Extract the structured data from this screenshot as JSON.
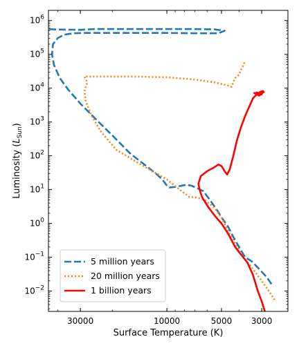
{
  "chart_data": {
    "type": "line",
    "xlabel": "Surface Temperature (K)",
    "ylabel": "Luminosity (L_Sun)",
    "ylabel_main": "Luminosity (",
    "ylabel_italic": "L",
    "ylabel_sub": "Sun",
    "ylabel_close": ")",
    "x_scale": "log",
    "x_inverted": true,
    "xlim": [
      45000,
      2150
    ],
    "y_scale": "log",
    "ylim": [
      0.0025,
      2000000
    ],
    "grid": false,
    "legend_position": "lower-left",
    "x_ticks": [
      {
        "value": 30000,
        "label": "30000"
      },
      {
        "value": 10000,
        "label": "10000"
      },
      {
        "value": 5000,
        "label": "5000"
      },
      {
        "value": 3000,
        "label": "3000"
      }
    ],
    "y_ticks": [
      {
        "value": 0.01,
        "base": "10",
        "exp": "−2"
      },
      {
        "value": 0.1,
        "base": "10",
        "exp": "−1"
      },
      {
        "value": 1,
        "base": "10",
        "exp": "0"
      },
      {
        "value": 10,
        "base": "10",
        "exp": "1"
      },
      {
        "value": 100,
        "base": "10",
        "exp": "2"
      },
      {
        "value": 1000,
        "base": "10",
        "exp": "3"
      },
      {
        "value": 10000,
        "base": "10",
        "exp": "4"
      },
      {
        "value": 100000,
        "base": "10",
        "exp": "5"
      },
      {
        "value": 1000000,
        "base": "10",
        "exp": "6"
      }
    ],
    "series": [
      {
        "name": "5 million years",
        "color": "#1f77b4",
        "style": "dashed",
        "points": [
          [
            2650,
            0.016
          ],
          [
            2800,
            0.025
          ],
          [
            3100,
            0.045
          ],
          [
            3400,
            0.075
          ],
          [
            3700,
            0.1
          ],
          [
            4000,
            0.2
          ],
          [
            4300,
            0.4
          ],
          [
            4600,
            0.8
          ],
          [
            4900,
            1.3
          ],
          [
            5300,
            2.5
          ],
          [
            5800,
            5
          ],
          [
            6300,
            9
          ],
          [
            6800,
            11
          ],
          [
            7300,
            13
          ],
          [
            7800,
            14
          ],
          [
            8300,
            13
          ],
          [
            9000,
            12
          ],
          [
            9700,
            11.5
          ],
          [
            9800,
            12
          ],
          [
            10100,
            14
          ],
          [
            10600,
            20
          ],
          [
            11500,
            30
          ],
          [
            13000,
            50
          ],
          [
            16000,
            120
          ],
          [
            20000,
            400
          ],
          [
            25000,
            1300
          ],
          [
            30000,
            3500
          ],
          [
            35000,
            9000
          ],
          [
            39000,
            20000
          ],
          [
            42000,
            50000
          ],
          [
            43000,
            100000
          ],
          [
            42500,
            200000
          ],
          [
            40000,
            300000
          ],
          [
            37000,
            380000
          ],
          [
            33000,
            420000
          ],
          [
            28000,
            430000
          ],
          [
            20000,
            430000
          ],
          [
            14000,
            430000
          ],
          [
            10000,
            430000
          ],
          [
            7000,
            420000
          ],
          [
            5200,
            420000
          ],
          [
            4800,
            500000
          ],
          [
            5500,
            550000
          ],
          [
            7000,
            560000
          ],
          [
            10000,
            560000
          ],
          [
            15000,
            560000
          ],
          [
            20000,
            560000
          ],
          [
            25000,
            560000
          ],
          [
            30000,
            530000
          ],
          [
            40000,
            540000
          ],
          [
            46000,
            560000
          ]
        ]
      },
      {
        "name": "20 million years",
        "color": "#ff7f0e",
        "style": "dotted",
        "points": [
          [
            2550,
            0.0055
          ],
          [
            2700,
            0.009
          ],
          [
            3000,
            0.02
          ],
          [
            3400,
            0.05
          ],
          [
            3800,
            0.1
          ],
          [
            4200,
            0.25
          ],
          [
            4600,
            0.6
          ],
          [
            5000,
            1.5
          ],
          [
            5500,
            3
          ],
          [
            6200,
            5
          ],
          [
            7000,
            6
          ],
          [
            7500,
            6
          ],
          [
            8500,
            10
          ],
          [
            10000,
            20
          ],
          [
            12000,
            35
          ],
          [
            15000,
            70
          ],
          [
            19000,
            150
          ],
          [
            23000,
            500
          ],
          [
            26000,
            1500
          ],
          [
            28000,
            4000
          ],
          [
            28500,
            8000
          ],
          [
            27500,
            15000
          ],
          [
            28500,
            22000
          ],
          [
            25000,
            22000
          ],
          [
            20000,
            22000
          ],
          [
            15000,
            22000
          ],
          [
            10000,
            21000
          ],
          [
            7000,
            18000
          ],
          [
            5500,
            15000
          ],
          [
            4600,
            12000
          ],
          [
            4400,
            11000
          ],
          [
            4200,
            20000
          ],
          [
            4000,
            25000
          ],
          [
            3900,
            35000
          ],
          [
            3800,
            45000
          ],
          [
            3700,
            65000
          ]
        ]
      },
      {
        "name": "1 billion years",
        "color": "#ff0000",
        "style": "solid",
        "points": [
          [
            2880,
            0.0025
          ],
          [
            3000,
            0.005
          ],
          [
            3150,
            0.01
          ],
          [
            3350,
            0.03
          ],
          [
            3600,
            0.07
          ],
          [
            3900,
            0.12
          ],
          [
            4200,
            0.2
          ],
          [
            4600,
            0.5
          ],
          [
            5000,
            1
          ],
          [
            5400,
            1.6
          ],
          [
            5900,
            3
          ],
          [
            6400,
            6
          ],
          [
            6600,
            10
          ],
          [
            6700,
            15
          ],
          [
            6500,
            25
          ],
          [
            6000,
            35
          ],
          [
            5500,
            45
          ],
          [
            5200,
            55
          ],
          [
            5000,
            50
          ],
          [
            4800,
            35
          ],
          [
            4650,
            28
          ],
          [
            4500,
            40
          ],
          [
            4300,
            100
          ],
          [
            4100,
            300
          ],
          [
            3900,
            700
          ],
          [
            3700,
            1500
          ],
          [
            3500,
            3000
          ],
          [
            3350,
            5000
          ],
          [
            3200,
            6500
          ],
          [
            3050,
            7800
          ],
          [
            2950,
            8200
          ],
          [
            3100,
            7000
          ],
          [
            3200,
            7500
          ],
          [
            3000,
            6500
          ],
          [
            3300,
            7200
          ],
          [
            3100,
            6000
          ],
          [
            2900,
            8000
          ]
        ]
      }
    ]
  },
  "legend": {
    "items": [
      {
        "label": "5 million years"
      },
      {
        "label": "20 million years"
      },
      {
        "label": "1 billion years"
      }
    ]
  }
}
